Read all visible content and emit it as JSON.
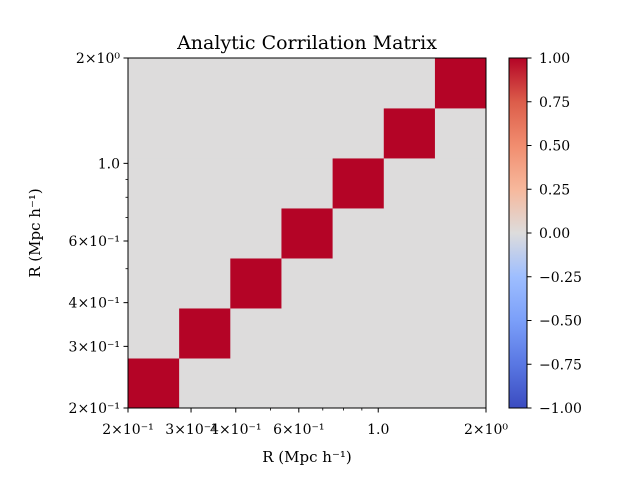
{
  "chart_data": {
    "type": "heatmap",
    "title": "Analytic Corrilation Matrix",
    "xlabel": "R (Mpc h⁻¹)",
    "ylabel": "R (Mpc h⁻¹)",
    "x_scale": "log",
    "y_scale": "log",
    "xlim": [
      0.2,
      2.0
    ],
    "ylim": [
      0.2,
      2.0
    ],
    "x_ticks": [
      {
        "value": 0.2,
        "label": "2×10⁻¹"
      },
      {
        "value": 0.3,
        "label": "3×10⁻¹"
      },
      {
        "value": 0.4,
        "label": "4×10⁻¹"
      },
      {
        "value": 0.6,
        "label": "6×10⁻¹"
      },
      {
        "value": 1.0,
        "label": "1.0"
      },
      {
        "value": 2.0,
        "label": "2×10⁰"
      }
    ],
    "y_ticks": [
      {
        "value": 0.2,
        "label": "2×10⁻¹"
      },
      {
        "value": 0.3,
        "label": "3×10⁻¹"
      },
      {
        "value": 0.4,
        "label": "4×10⁻¹"
      },
      {
        "value": 0.6,
        "label": "6×10⁻¹"
      },
      {
        "value": 1.0,
        "label": "1.0"
      },
      {
        "value": 2.0,
        "label": "2×10⁰"
      }
    ],
    "bin_edges": [
      0.2,
      0.2779,
      0.3862,
      0.5366,
      0.7457,
      1.0363,
      1.4401,
      2.0
    ],
    "matrix": [
      [
        1,
        0,
        0,
        0,
        0,
        0,
        0
      ],
      [
        0,
        1,
        0,
        0,
        0,
        0,
        0
      ],
      [
        0,
        0,
        1,
        0,
        0,
        0,
        0
      ],
      [
        0,
        0,
        0,
        1,
        0,
        0,
        0
      ],
      [
        0,
        0,
        0,
        0,
        1,
        0,
        0
      ],
      [
        0,
        0,
        0,
        0,
        0,
        1,
        0
      ],
      [
        0,
        0,
        0,
        0,
        0,
        0,
        1
      ]
    ],
    "colormap": "coolwarm",
    "colorbar": {
      "range": [
        -1.0,
        1.0
      ],
      "ticks": [
        -1.0,
        -0.75,
        -0.5,
        -0.25,
        0.0,
        0.25,
        0.5,
        0.75,
        1.0
      ],
      "tick_labels": [
        "−1.00",
        "−0.75",
        "−0.50",
        "−0.25",
        "0.00",
        "0.25",
        "0.50",
        "0.75",
        "1.00"
      ],
      "stops": [
        {
          "value": -1.0,
          "color": "#3b4cc0"
        },
        {
          "value": -0.75,
          "color": "#5977e3"
        },
        {
          "value": -0.5,
          "color": "#7b9ff9"
        },
        {
          "value": -0.25,
          "color": "#9ebeff"
        },
        {
          "value": 0.0,
          "color": "#dddcdc"
        },
        {
          "value": 0.25,
          "color": "#f7b89c"
        },
        {
          "value": 0.5,
          "color": "#f18d6f"
        },
        {
          "value": 0.75,
          "color": "#dc5d4a"
        },
        {
          "value": 1.0,
          "color": "#b40426"
        }
      ]
    },
    "colors": {
      "value_one": "#b40426",
      "value_zero": "#dddcdc"
    }
  }
}
